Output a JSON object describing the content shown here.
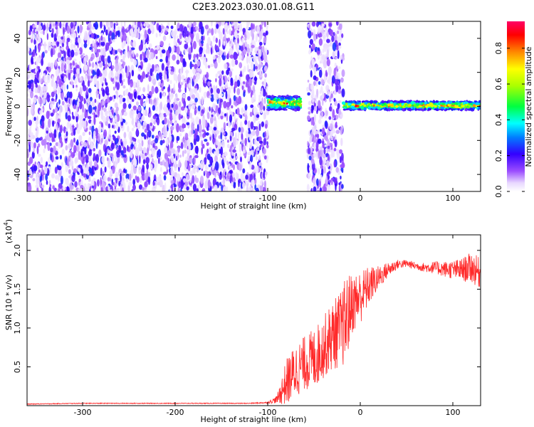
{
  "chart_data": [
    {
      "type": "heatmap",
      "title": "C2E3.2023.030.01.08.G11",
      "xlabel": "Height of straight line (km)",
      "ylabel": "Frequency (Hz)",
      "xlim": [
        -360,
        130
      ],
      "ylim": [
        -50,
        50
      ],
      "xticks": [
        -300,
        -200,
        -100,
        0,
        100
      ],
      "yticks": [
        -40,
        -20,
        0,
        20,
        40
      ],
      "colorbar": {
        "label": "Normalized spectral amplitude",
        "range": [
          0.0,
          0.95
        ],
        "ticks": [
          0.0,
          0.2,
          0.4,
          0.6,
          0.8
        ]
      },
      "regions": [
        {
          "x_range": [
            -360,
            -100
          ],
          "content": "broadband noise, amplitude ~0.05-0.25"
        },
        {
          "x_range": [
            -100,
            -60
          ],
          "content": "empty"
        },
        {
          "x_range": [
            -100,
            -64
          ],
          "freq_hz": [
            -2,
            6
          ],
          "content": "signal band, amplitude ~0.3-0.9"
        },
        {
          "x_range": [
            -57,
            -18
          ],
          "content": "broadband noise, amplitude ~0.05-0.25"
        },
        {
          "x_range": [
            -18,
            130
          ],
          "freq_hz": [
            -2,
            3
          ],
          "content": "narrow signal band near 0 Hz, amplitude ~0.4-0.9"
        }
      ]
    },
    {
      "type": "line",
      "title": "",
      "xlabel": "Height of straight line (km)",
      "ylabel": "SNR (10 * v/v)",
      "y_multiplier_label": "(x10",
      "y_multiplier_exp": "4",
      "xlim": [
        -360,
        130
      ],
      "ylim": [
        0,
        2.2
      ],
      "xticks": [
        -300,
        -200,
        -100,
        0,
        100
      ],
      "yticks": [
        0.5,
        1.0,
        1.5,
        2.0
      ],
      "series": [
        {
          "color": "#ff2a2a",
          "x": [
            -360,
            -300,
            -200,
            -120,
            -100,
            -90,
            -80,
            -70,
            -60,
            -50,
            -40,
            -30,
            -20,
            -15,
            -10,
            0,
            10,
            20,
            30,
            40,
            50,
            60,
            70,
            80,
            90,
            100,
            110,
            120,
            130
          ],
          "y": [
            0.02,
            0.03,
            0.03,
            0.03,
            0.04,
            0.08,
            0.3,
            0.45,
            0.55,
            0.6,
            0.75,
            0.9,
            1.0,
            1.1,
            1.3,
            1.4,
            1.55,
            1.65,
            1.75,
            1.82,
            1.83,
            1.8,
            1.78,
            1.78,
            1.76,
            1.75,
            1.75,
            1.78,
            1.7
          ],
          "noise_amplitude": [
            0.005,
            0.005,
            0.005,
            0.005,
            0.01,
            0.05,
            0.3,
            0.35,
            0.35,
            0.4,
            0.4,
            0.45,
            0.5,
            0.6,
            0.4,
            0.35,
            0.25,
            0.15,
            0.1,
            0.06,
            0.05,
            0.05,
            0.06,
            0.08,
            0.1,
            0.12,
            0.15,
            0.2,
            0.2
          ]
        }
      ]
    }
  ]
}
